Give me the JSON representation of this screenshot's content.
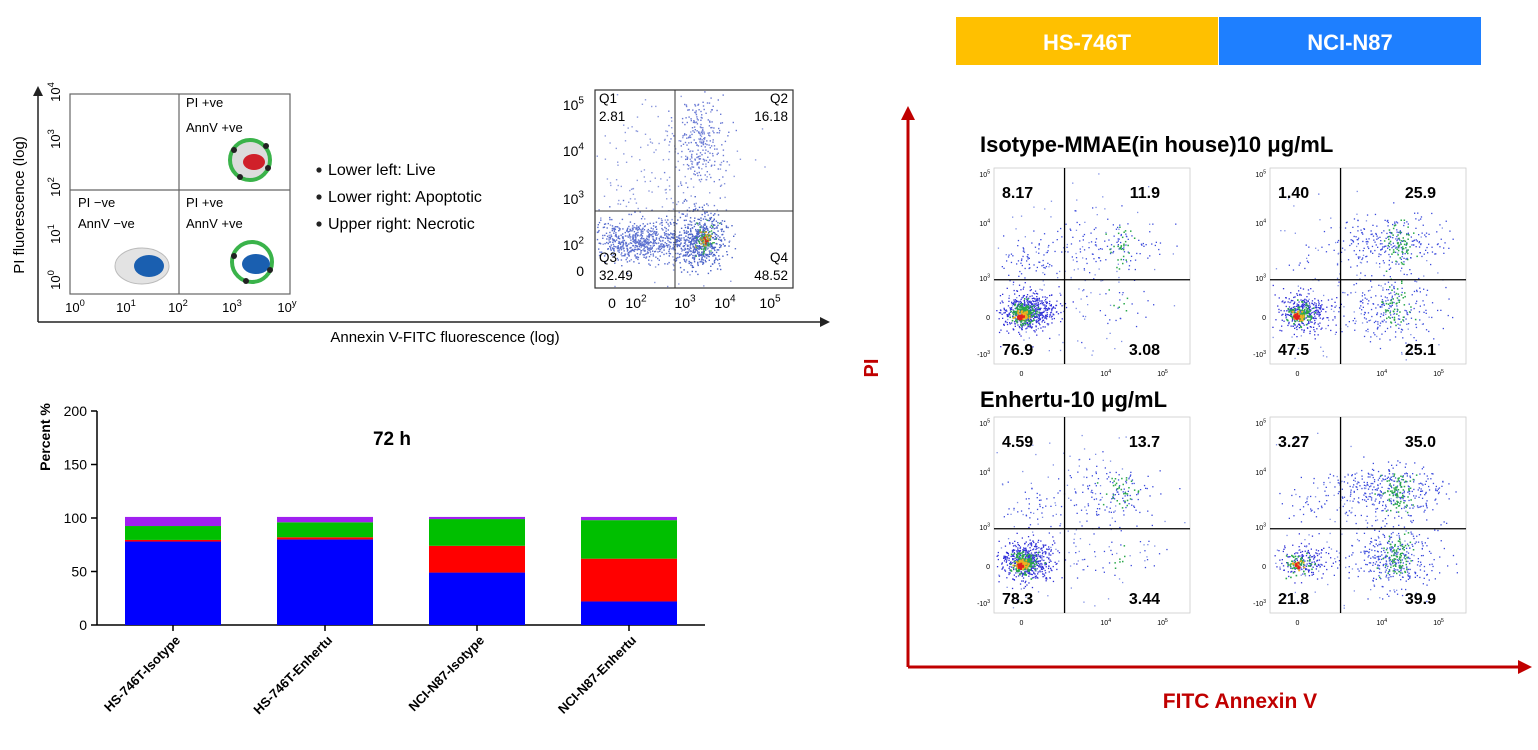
{
  "schematic": {
    "y_axis_label": "PI fluorescence (log)",
    "x_axis_label": "Annexin V-FITC fluorescence (log)",
    "y_ticks": [
      "10^0",
      "10^1",
      "10^2",
      "10^3",
      "10^4"
    ],
    "x_ticks": [
      "10^0",
      "10^1",
      "10^2",
      "10^3",
      "10^y"
    ],
    "quadrants": {
      "upper_right": [
        "PI +ve",
        "AnnV +ve"
      ],
      "lower_left": [
        "PI −ve",
        "AnnV −ve"
      ],
      "lower_right": [
        "PI +ve",
        "AnnV +ve"
      ]
    },
    "bullets": [
      "Lower left: Live",
      "Lower right: Apoptotic",
      "Upper right: Necrotic"
    ]
  },
  "example_plot": {
    "y_ticks": [
      "10^5",
      "10^4",
      "10^3",
      "10^2",
      "0"
    ],
    "x_ticks": [
      "0",
      "10^2",
      "10^3",
      "10^4",
      "10^5"
    ],
    "quadrants": [
      {
        "name": "Q1",
        "value": "2.81"
      },
      {
        "name": "Q2",
        "value": "16.18"
      },
      {
        "name": "Q3",
        "value": "32.49"
      },
      {
        "name": "Q4",
        "value": "48.52"
      }
    ]
  },
  "chart_data": {
    "type": "bar",
    "title": "72 h",
    "ylabel": "Percent %",
    "xlabel": "",
    "ylim": [
      0,
      200
    ],
    "yticks": [
      "0",
      "50",
      "100",
      "150",
      "200"
    ],
    "categories": [
      "HS-746T-Isotype",
      "HS-746T-Enhertu",
      "NCI-N87-Isotype",
      "NCI-N87-Enhertu"
    ],
    "colors": [
      "#0000ff",
      "#ff0000",
      "#00bf00",
      "#a020f0"
    ],
    "series": [
      {
        "values": [
          78,
          80,
          49,
          22
        ]
      },
      {
        "values": [
          1.5,
          2,
          25,
          40
        ]
      },
      {
        "values": [
          13,
          14,
          25,
          36
        ]
      },
      {
        "values": [
          8.5,
          5,
          2,
          3
        ]
      }
    ]
  },
  "flow_panels": {
    "cell_lines": [
      {
        "label": "HS-746T",
        "color": "#ffc000"
      },
      {
        "label": "NCI-N87",
        "color": "#1e7fff"
      }
    ],
    "y_axis_label": "PI",
    "x_axis_label": "FITC Annexin V",
    "axis_color": "#c00000",
    "y_ticks": [
      "10^5",
      "10^4",
      "10^3",
      "0",
      "-10^3"
    ],
    "x_ticks": [
      "0",
      "10^4",
      "10^5"
    ],
    "rows": [
      {
        "title": "Isotype-MMAE(in house)10 μg/mL",
        "plots": [
          {
            "ul": "8.17",
            "ur": "11.9",
            "ll": "76.9",
            "lr": "3.08"
          },
          {
            "ul": "1.40",
            "ur": "25.9",
            "ll": "47.5",
            "lr": "25.1"
          }
        ]
      },
      {
        "title": "Enhertu-10 μg/mL",
        "plots": [
          {
            "ul": "4.59",
            "ur": "13.7",
            "ll": "78.3",
            "lr": "3.44"
          },
          {
            "ul": "3.27",
            "ur": "35.0",
            "ll": "21.8",
            "lr": "39.9"
          }
        ]
      }
    ]
  }
}
